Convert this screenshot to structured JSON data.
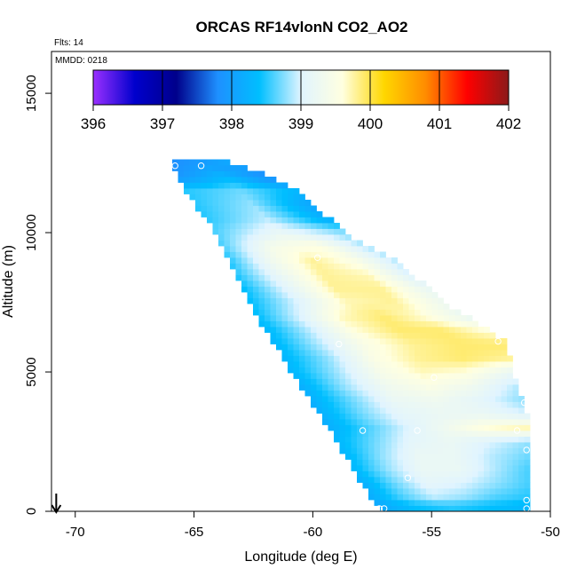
{
  "chart_data": {
    "type": "heatmap",
    "title": "ORCAS RF14vlonN CO2_AO2",
    "xlabel": "Longitude (deg E)",
    "ylabel": "Altitude (m)",
    "xlim": [
      -71,
      -50
    ],
    "ylim": [
      0,
      16500
    ],
    "xticks": [
      -70,
      -65,
      -60,
      -55,
      -50
    ],
    "yticks": [
      0,
      5000,
      10000,
      15000
    ],
    "flights_label": "Flts: 14",
    "date_label": "MMDD: 0218",
    "colorbar": {
      "range": [
        396,
        402
      ],
      "ticks": [
        396,
        397,
        398,
        399,
        400,
        401,
        402
      ],
      "colors": [
        "#9b30ff",
        "#0000cd",
        "#00008b",
        "#1e90ff",
        "#00bfff",
        "#e0f4ff",
        "#ffffe0",
        "#ffd700",
        "#ff8c00",
        "#ff0000",
        "#8b1a1a"
      ]
    },
    "arrow_at_longitude": -70.8,
    "sample_points": [
      {
        "lon": -65.8,
        "alt": 12400
      },
      {
        "lon": -64.7,
        "alt": 12400
      },
      {
        "lon": -60.8,
        "alt": 11800
      },
      {
        "lon": -59.8,
        "alt": 9100
      },
      {
        "lon": -58.9,
        "alt": 6000
      },
      {
        "lon": -52.2,
        "alt": 6100
      },
      {
        "lon": -54.9,
        "alt": 4800
      },
      {
        "lon": -51.1,
        "alt": 3900
      },
      {
        "lon": -57.9,
        "alt": 2900
      },
      {
        "lon": -55.6,
        "alt": 2900
      },
      {
        "lon": -51.4,
        "alt": 2900
      },
      {
        "lon": -51.0,
        "alt": 2200
      },
      {
        "lon": -56.0,
        "alt": 1200
      },
      {
        "lon": -51.0,
        "alt": 400
      },
      {
        "lon": -57.2,
        "alt": 100
      },
      {
        "lon": -57.0,
        "alt": 100
      },
      {
        "lon": -51.0,
        "alt": 100
      }
    ],
    "curtain_profiles": [
      {
        "alt": 12500,
        "lon_min": -65.9,
        "lon_max": -63.6,
        "values": [
          397.8,
          398.1
        ]
      },
      {
        "alt": 12000,
        "lon_min": -65.6,
        "lon_max": -61.8,
        "values": [
          397.9,
          398.3,
          397.8
        ]
      },
      {
        "alt": 11500,
        "lon_min": -65.3,
        "lon_max": -60.7,
        "values": [
          398.5,
          398.7,
          398.3
        ]
      },
      {
        "alt": 11000,
        "lon_min": -64.9,
        "lon_max": -60.2,
        "values": [
          398.5,
          398.8,
          398.1
        ]
      },
      {
        "alt": 10500,
        "lon_min": -64.5,
        "lon_max": -59.4,
        "values": [
          398.5,
          398.9,
          398.2
        ]
      },
      {
        "alt": 10000,
        "lon_min": -64.1,
        "lon_max": -58.8,
        "values": [
          398.6,
          399.2,
          398.8
        ]
      },
      {
        "alt": 9500,
        "lon_min": -63.8,
        "lon_max": -57.8,
        "values": [
          398.6,
          399.4,
          399.6,
          398.9
        ]
      },
      {
        "alt": 9000,
        "lon_min": -63.5,
        "lon_max": -56.5,
        "values": [
          398.5,
          399.3,
          399.8,
          399.5,
          398.9
        ]
      },
      {
        "alt": 8500,
        "lon_min": -63.2,
        "lon_max": -55.9,
        "values": [
          398.5,
          399.2,
          399.8,
          399.7,
          399.0
        ]
      },
      {
        "alt": 8000,
        "lon_min": -62.9,
        "lon_max": -55.2,
        "values": [
          398.4,
          399.1,
          399.8,
          399.8,
          399.2
        ]
      },
      {
        "alt": 7500,
        "lon_min": -62.6,
        "lon_max": -54.6,
        "values": [
          398.4,
          399.0,
          399.7,
          399.8,
          399.3
        ]
      },
      {
        "alt": 7000,
        "lon_min": -62.3,
        "lon_max": -53.5,
        "values": [
          398.4,
          399.0,
          399.7,
          399.9,
          399.6,
          399.2
        ]
      },
      {
        "alt": 6500,
        "lon_min": -62.0,
        "lon_max": -52.7,
        "values": [
          398.3,
          398.9,
          399.6,
          399.9,
          399.9,
          399.6
        ]
      },
      {
        "alt": 6000,
        "lon_min": -61.6,
        "lon_max": -51.9,
        "values": [
          398.3,
          398.9,
          399.5,
          399.8,
          399.9,
          399.9
        ]
      },
      {
        "alt": 5500,
        "lon_min": -61.2,
        "lon_max": -51.8,
        "values": [
          398.3,
          398.8,
          399.5,
          399.8,
          399.9,
          399.8
        ]
      },
      {
        "alt": 5000,
        "lon_min": -60.9,
        "lon_max": -51.7,
        "values": [
          398.3,
          398.8,
          399.4,
          399.7,
          399.6,
          399.2
        ]
      },
      {
        "alt": 4500,
        "lon_min": -60.5,
        "lon_max": -51.5,
        "values": [
          398.2,
          398.8,
          399.3,
          399.5,
          399.3,
          398.9
        ]
      },
      {
        "alt": 4000,
        "lon_min": -60.1,
        "lon_max": -51.3,
        "values": [
          398.2,
          398.7,
          399.2,
          399.3,
          399.1,
          398.8
        ]
      },
      {
        "alt": 3500,
        "lon_min": -59.7,
        "lon_max": -51.1,
        "values": [
          398.2,
          398.7,
          399.1,
          399.2,
          399.2,
          399.0
        ]
      },
      {
        "alt": 3000,
        "lon_min": -59.3,
        "lon_max": -51.1,
        "values": [
          398.2,
          398.6,
          399.0,
          399.3,
          399.6,
          399.7
        ]
      },
      {
        "alt": 2500,
        "lon_min": -59.0,
        "lon_max": -51.0,
        "values": [
          398.3,
          398.7,
          399.1,
          399.2,
          399.0,
          398.8
        ]
      },
      {
        "alt": 2000,
        "lon_min": -58.6,
        "lon_max": -51.0,
        "values": [
          398.3,
          398.8,
          399.2,
          399.2,
          398.9,
          398.7
        ]
      },
      {
        "alt": 1500,
        "lon_min": -58.3,
        "lon_max": -51.0,
        "values": [
          398.3,
          398.8,
          399.2,
          399.2,
          398.9,
          398.6
        ]
      },
      {
        "alt": 1000,
        "lon_min": -57.9,
        "lon_max": -51.0,
        "values": [
          398.2,
          398.7,
          399.1,
          399.0,
          398.8,
          398.6
        ]
      },
      {
        "alt": 500,
        "lon_min": -57.5,
        "lon_max": -51.0,
        "values": [
          398.2,
          398.6,
          398.9,
          398.8,
          398.6,
          398.5
        ]
      },
      {
        "alt": 200,
        "lon_min": -57.2,
        "lon_max": -51.0,
        "values": [
          398.1,
          398.4,
          398.5,
          398.4,
          398.3
        ]
      }
    ]
  }
}
